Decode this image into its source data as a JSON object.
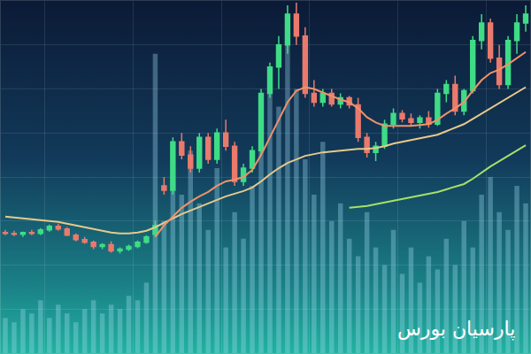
{
  "chart_data": {
    "type": "candlestick",
    "x": [
      0,
      1,
      2,
      3,
      4,
      5,
      6,
      7,
      8,
      9,
      10,
      11,
      12,
      13,
      14,
      15,
      16,
      17,
      18,
      19,
      20,
      21,
      22,
      23,
      24,
      25,
      26,
      27,
      28,
      29,
      30,
      31,
      32,
      33,
      34,
      35,
      36,
      37,
      38,
      39,
      40,
      41,
      42,
      43,
      44,
      45,
      46,
      47,
      48,
      49,
      50,
      51,
      52,
      53,
      54,
      55,
      56,
      57,
      58,
      59
    ],
    "open": [
      137,
      136,
      135,
      137,
      136,
      140,
      144,
      141,
      134,
      129,
      126,
      121,
      123,
      116,
      118,
      121,
      126,
      135,
      190,
      185,
      240,
      225,
      210,
      245,
      220,
      250,
      235,
      195,
      210,
      230,
      295,
      325,
      350,
      385,
      360,
      295,
      285,
      295,
      283,
      290,
      282,
      245,
      228,
      235,
      260,
      272,
      266,
      262,
      267,
      260,
      295,
      305,
      275,
      298,
      355,
      375,
      335,
      305,
      355,
      375
    ],
    "high": [
      140,
      139,
      138,
      140,
      142,
      146,
      147,
      143,
      136,
      132,
      128,
      125,
      127,
      120,
      123,
      128,
      134,
      150,
      200,
      245,
      250,
      235,
      250,
      250,
      255,
      265,
      240,
      215,
      235,
      300,
      330,
      360,
      395,
      398,
      370,
      310,
      300,
      300,
      295,
      292,
      290,
      250,
      240,
      265,
      278,
      276,
      272,
      270,
      275,
      300,
      310,
      315,
      300,
      360,
      385,
      380,
      350,
      360,
      385,
      395
    ],
    "low": [
      134,
      133,
      132,
      134,
      134,
      138,
      139,
      133,
      127,
      124,
      118,
      118,
      114,
      113,
      116,
      119,
      124,
      132,
      180,
      180,
      220,
      205,
      205,
      215,
      215,
      230,
      190,
      190,
      205,
      225,
      290,
      300,
      340,
      350,
      290,
      280,
      280,
      280,
      278,
      278,
      240,
      222,
      218,
      232,
      255,
      262,
      258,
      255,
      256,
      258,
      285,
      270,
      270,
      295,
      345,
      330,
      300,
      300,
      340,
      365
    ],
    "close": [
      136,
      135,
      137,
      136,
      140,
      144,
      141,
      134,
      129,
      126,
      121,
      123,
      116,
      118,
      121,
      126,
      132,
      145,
      185,
      240,
      225,
      210,
      245,
      220,
      250,
      235,
      195,
      210,
      230,
      295,
      325,
      350,
      385,
      360,
      295,
      285,
      295,
      283,
      290,
      282,
      245,
      228,
      235,
      260,
      272,
      266,
      262,
      267,
      260,
      295,
      305,
      275,
      298,
      355,
      375,
      335,
      305,
      355,
      375,
      385
    ],
    "series": [
      {
        "type": "bar",
        "color": "#9fdcf0",
        "values": [
          40,
          35,
          50,
          45,
          60,
          40,
          55,
          45,
          35,
          50,
          60,
          45,
          55,
          50,
          65,
          60,
          80,
          340,
          150,
          200,
          180,
          230,
          170,
          140,
          210,
          120,
          160,
          130,
          190,
          250,
          320,
          280,
          360,
          300,
          220,
          180,
          240,
          150,
          170,
          130,
          110,
          160,
          120,
          100,
          140,
          90,
          120,
          80,
          110,
          95,
          130,
          100,
          150,
          120,
          180,
          200,
          160,
          140,
          190,
          170
        ]
      },
      {
        "type": "line",
        "color": "#e8c98a",
        "values": [
          155,
          154,
          153,
          152,
          151,
          150,
          149,
          147,
          145,
          143,
          141,
          139,
          137,
          136,
          136,
          137,
          139,
          143,
          148,
          153,
          158,
          162,
          166,
          170,
          174,
          178,
          181,
          184,
          188,
          195,
          203,
          210,
          216,
          220,
          224,
          226,
          228,
          229,
          230,
          231,
          232,
          232,
          233,
          235,
          238,
          240,
          242,
          244,
          246,
          248,
          252,
          256,
          260,
          266,
          272,
          278,
          284,
          290,
          296,
          302
        ]
      },
      {
        "type": "line",
        "color": "#f0926a",
        "values": [
          null,
          null,
          null,
          null,
          null,
          null,
          null,
          null,
          null,
          null,
          null,
          null,
          null,
          null,
          null,
          null,
          null,
          132,
          145,
          155,
          165,
          172,
          178,
          183,
          190,
          195,
          197,
          200,
          208,
          225,
          245,
          265,
          285,
          298,
          302,
          300,
          296,
          292,
          288,
          285,
          278,
          268,
          262,
          258,
          258,
          258,
          258,
          259,
          260,
          265,
          272,
          278,
          285,
          298,
          310,
          318,
          322,
          328,
          335,
          342
        ]
      },
      {
        "type": "line",
        "color": "#a6e06a",
        "values": [
          null,
          null,
          null,
          null,
          null,
          null,
          null,
          null,
          null,
          null,
          null,
          null,
          null,
          null,
          null,
          null,
          null,
          null,
          null,
          null,
          null,
          null,
          null,
          null,
          null,
          null,
          null,
          null,
          null,
          null,
          null,
          null,
          null,
          null,
          null,
          null,
          null,
          null,
          null,
          165,
          166,
          167,
          169,
          171,
          173,
          175,
          177,
          179,
          181,
          183,
          186,
          189,
          192,
          198,
          205,
          212,
          218,
          224,
          230,
          236
        ]
      }
    ],
    "annotations": [
      {
        "text": "پارسیان بورس"
      }
    ],
    "xlim": [
      -0.5,
      59.5
    ],
    "ylim": [
      0,
      400
    ],
    "xticks": [
      4.5,
      14.5,
      24.5,
      34.5,
      44.5,
      54.5
    ],
    "yticks": [
      50,
      100,
      150,
      200,
      250,
      300,
      350
    ],
    "grid": true,
    "tick_labels": false
  }
}
